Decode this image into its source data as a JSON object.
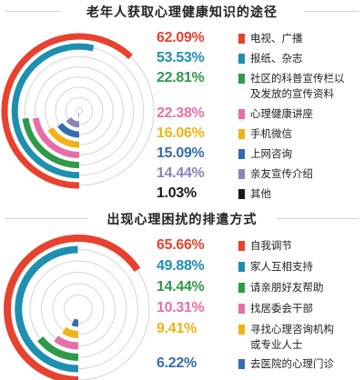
{
  "chart_data": [
    {
      "type": "radial-bar",
      "title": "老年人获取心理健康知识的途径",
      "categories": [
        "电视、广播",
        "报纸、杂志",
        "社区的科普宣传栏以及发放的宣传资料",
        "心理健康讲座",
        "手机微信",
        "上网咨询",
        "亲友宣传介绍",
        "其他"
      ],
      "values": [
        62.09,
        53.53,
        22.81,
        22.38,
        16.06,
        15.09,
        14.44,
        1.03
      ],
      "value_labels": [
        "62.09%",
        "53.53%",
        "22.81%",
        "22.38%",
        "16.06%",
        "15.09%",
        "14.44%",
        "1.03%"
      ],
      "label_lines": [
        [
          "电视、广播"
        ],
        [
          "报纸、杂志"
        ],
        [
          "社区的科普宣传栏以",
          "及发放的宣传资料"
        ],
        [
          "心理健康讲座"
        ],
        [
          "手机微信"
        ],
        [
          "上网咨询"
        ],
        [
          "亲友宣传介绍"
        ],
        [
          "其他"
        ]
      ],
      "colors": [
        "#e8412e",
        "#1d8fb1",
        "#2e9a49",
        "#e86ea7",
        "#efb315",
        "#356bb0",
        "#8b84b7",
        "#1a1a1a"
      ],
      "legend": "right"
    },
    {
      "type": "radial-bar",
      "title": "出现心理困扰的排遣方式",
      "categories": [
        "自我调节",
        "家人互相支持",
        "请亲朋好友帮助",
        "找居委会干部",
        "寻找心理咨询机构或专业人士",
        "去医院的心理门诊"
      ],
      "values": [
        65.66,
        49.88,
        14.44,
        10.31,
        9.41,
        6.22
      ],
      "value_labels": [
        "65.66%",
        "49.88%",
        "14.44%",
        "10.31%",
        "9.41%",
        "6.22%"
      ],
      "label_lines": [
        [
          "自我调节"
        ],
        [
          "家人互相支持"
        ],
        [
          "请亲朋好友帮助"
        ],
        [
          "找居委会干部"
        ],
        [
          "寻找心理咨询机构",
          "或专业人士"
        ],
        [
          "去医院的心理门诊"
        ]
      ],
      "colors": [
        "#e8412e",
        "#1d8fb1",
        "#2e9a49",
        "#e86ea7",
        "#efb315",
        "#356bb0"
      ],
      "legend": "right"
    }
  ]
}
